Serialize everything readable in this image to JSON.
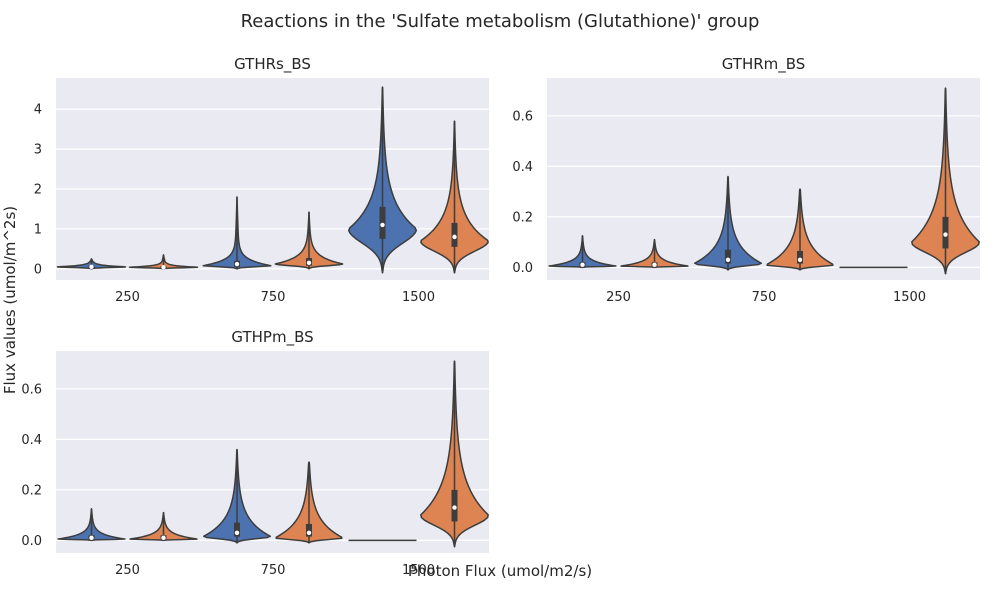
{
  "figure": {
    "title": "Reactions in the 'Sulfate metabolism (Glutathione)' group",
    "xlabel": "Photon Flux (umol/m2/s)",
    "ylabel": "Flux values (umol/m^2s)"
  },
  "colors": {
    "background": "#eaeaf2",
    "grid": "#ffffff",
    "series_1": "#4c72b0",
    "series_2": "#dd8452",
    "box": "#3d3d3d",
    "median": "#ffffff"
  },
  "chart_data": [
    {
      "type": "violin",
      "title": "GTHRs_BS",
      "categories": [
        "250",
        "750",
        "1500"
      ],
      "ylim": [
        -0.28,
        4.78
      ],
      "yticks": [
        0,
        1,
        2,
        3,
        4
      ],
      "ytick_labels": [
        "0",
        "1",
        "2",
        "3",
        "4"
      ],
      "grid": true,
      "series": [
        {
          "violins": [
            {
              "min": 0.0,
              "max": 0.25,
              "q1": 0.03,
              "median": 0.05,
              "q3": 0.08,
              "peak": 0.05
            },
            {
              "min": 0.0,
              "max": 1.8,
              "q1": 0.05,
              "median": 0.12,
              "q3": 0.2,
              "peak": 0.08
            },
            {
              "min": -0.1,
              "max": 4.55,
              "q1": 0.75,
              "median": 1.1,
              "q3": 1.55,
              "peak": 1.0
            }
          ]
        },
        {
          "violins": [
            {
              "min": 0.0,
              "max": 0.35,
              "q1": 0.02,
              "median": 0.04,
              "q3": 0.07,
              "peak": 0.04
            },
            {
              "min": 0.0,
              "max": 1.42,
              "q1": 0.08,
              "median": 0.15,
              "q3": 0.27,
              "peak": 0.12
            },
            {
              "min": -0.1,
              "max": 3.7,
              "q1": 0.55,
              "median": 0.8,
              "q3": 1.15,
              "peak": 0.7
            }
          ]
        }
      ]
    },
    {
      "type": "violin",
      "title": "GTHRm_BS",
      "categories": [
        "250",
        "750",
        "1500"
      ],
      "ylim": [
        -0.05,
        0.75
      ],
      "yticks": [
        0.0,
        0.2,
        0.4,
        0.6
      ],
      "ytick_labels": [
        "0.0",
        "0.2",
        "0.4",
        "0.6"
      ],
      "grid": true,
      "series": [
        {
          "violins": [
            {
              "min": 0.0,
              "max": 0.125,
              "q1": 0.005,
              "median": 0.01,
              "q3": 0.02,
              "peak": 0.005
            },
            {
              "min": -0.01,
              "max": 0.36,
              "q1": 0.015,
              "median": 0.03,
              "q3": 0.07,
              "peak": 0.015
            },
            {
              "min": 0.0,
              "max": 0.0,
              "q1": 0.0,
              "median": 0.0,
              "q3": 0.0,
              "peak": 0.0
            }
          ]
        },
        {
          "violins": [
            {
              "min": 0.0,
              "max": 0.11,
              "q1": 0.005,
              "median": 0.01,
              "q3": 0.02,
              "peak": 0.005
            },
            {
              "min": -0.01,
              "max": 0.31,
              "q1": 0.015,
              "median": 0.03,
              "q3": 0.065,
              "peak": 0.01
            },
            {
              "min": -0.025,
              "max": 0.71,
              "q1": 0.075,
              "median": 0.13,
              "q3": 0.2,
              "peak": 0.1
            }
          ]
        }
      ]
    },
    {
      "type": "violin",
      "title": "GTHPm_BS",
      "categories": [
        "250",
        "750",
        "1500"
      ],
      "ylim": [
        -0.05,
        0.75
      ],
      "yticks": [
        0.0,
        0.2,
        0.4,
        0.6
      ],
      "ytick_labels": [
        "0.0",
        "0.2",
        "0.4",
        "0.6"
      ],
      "grid": true,
      "series": [
        {
          "violins": [
            {
              "min": 0.0,
              "max": 0.125,
              "q1": 0.005,
              "median": 0.01,
              "q3": 0.02,
              "peak": 0.005
            },
            {
              "min": -0.01,
              "max": 0.36,
              "q1": 0.015,
              "median": 0.03,
              "q3": 0.07,
              "peak": 0.015
            },
            {
              "min": 0.0,
              "max": 0.0,
              "q1": 0.0,
              "median": 0.0,
              "q3": 0.0,
              "peak": 0.0
            }
          ]
        },
        {
          "violins": [
            {
              "min": 0.0,
              "max": 0.11,
              "q1": 0.005,
              "median": 0.01,
              "q3": 0.02,
              "peak": 0.005
            },
            {
              "min": -0.01,
              "max": 0.31,
              "q1": 0.015,
              "median": 0.03,
              "q3": 0.065,
              "peak": 0.01
            },
            {
              "min": -0.025,
              "max": 0.71,
              "q1": 0.075,
              "median": 0.13,
              "q3": 0.2,
              "peak": 0.1
            }
          ]
        }
      ]
    }
  ]
}
